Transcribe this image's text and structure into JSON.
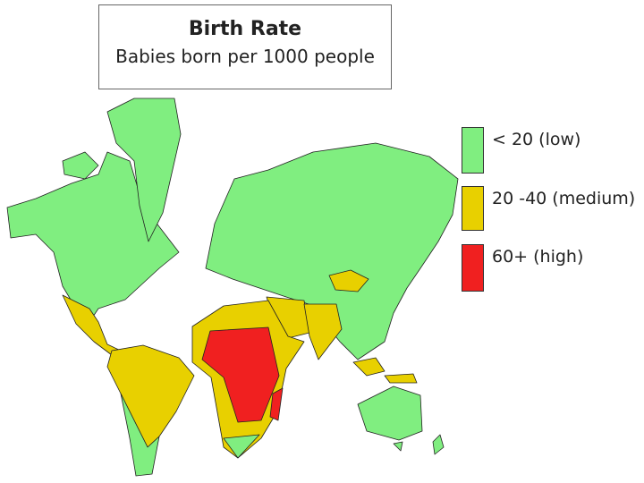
{
  "header": {
    "title": "Birth Rate",
    "subtitle": "Babies born per 1000 people"
  },
  "legend": {
    "entries": [
      {
        "label": "< 20 (low)",
        "color": "#80ee80"
      },
      {
        "label": "20 -40 (medium)",
        "color": "#e8d000"
      },
      {
        "label": "60+ (high)",
        "color": "#f02020"
      }
    ]
  }
}
